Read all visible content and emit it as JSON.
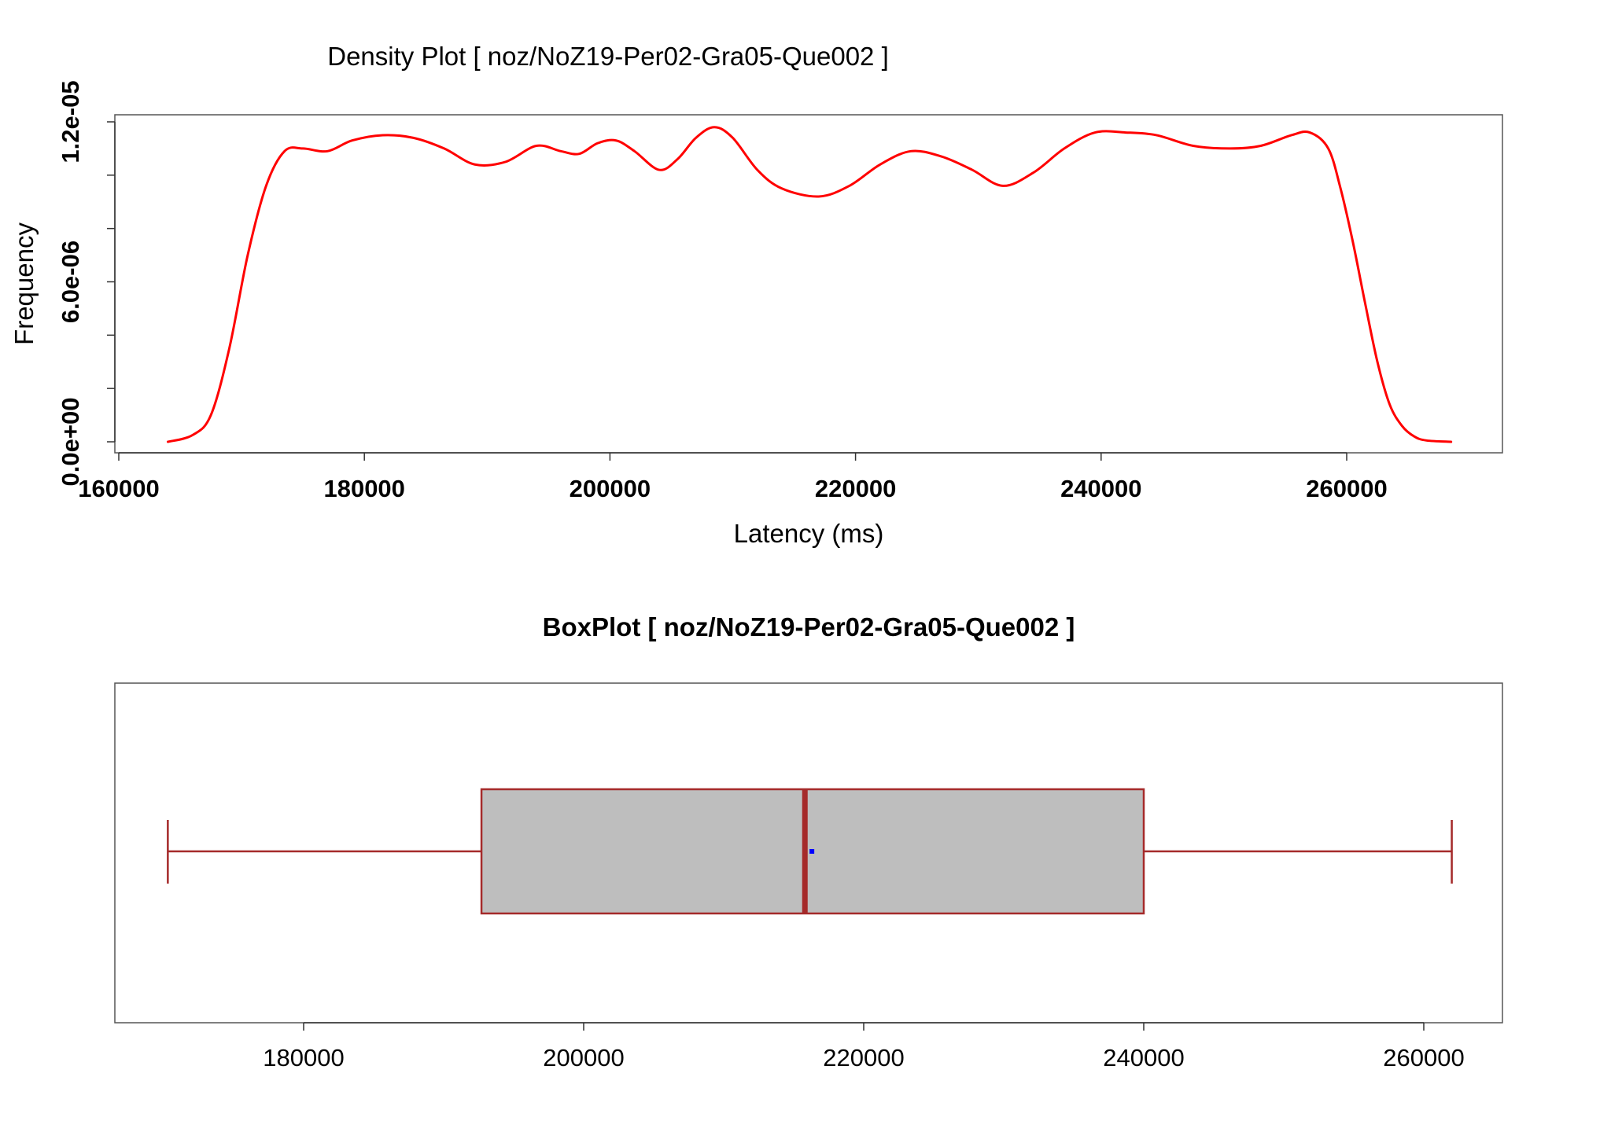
{
  "chart_data": [
    {
      "type": "line",
      "title": "Density Plot [ noz/NoZ19-Per02-Gra05-Que002 ]",
      "xlabel": "Latency (ms)",
      "ylabel": "Frequency",
      "xlim": [
        160000,
        270000
      ],
      "ylim": [
        0,
        1.23e-05
      ],
      "x_ticks": [
        160000,
        180000,
        200000,
        220000,
        240000,
        260000
      ],
      "x_tick_labels": [
        "160000",
        "180000",
        "200000",
        "220000",
        "240000",
        "260000"
      ],
      "y_ticks": [
        0,
        6e-06,
        1.2e-05
      ],
      "y_tick_labels": [
        "0.0e+00",
        "6.0e-06",
        "1.2e-05"
      ],
      "y_minor_ticks": [
        2e-06,
        4e-06,
        8e-06,
        1e-05
      ],
      "grid": false,
      "line_color": "#ff0000",
      "series": [
        {
          "x": [
            164000,
            166000,
            167500,
            169000,
            170500,
            172000,
            173500,
            175000,
            177000,
            179000,
            181500,
            184000,
            186500,
            189000,
            191500,
            194000,
            196000,
            197500,
            199000,
            200500,
            202000,
            204000,
            205500,
            207000,
            208500,
            210000,
            212000,
            214000,
            217000,
            219500,
            222000,
            224500,
            227000,
            229500,
            232000,
            234500,
            237000,
            239500,
            242000,
            244500,
            247500,
            250500,
            253000,
            255500,
            257000,
            258500,
            259500,
            260500,
            261500,
            262500,
            263500,
            264500,
            265500,
            266500,
            268500
          ],
          "y": [
            0,
            2.5e-07,
            1e-06,
            3.5e-06,
            7e-06,
            9.6e-06,
            1.09e-05,
            1.1e-05,
            1.09e-05,
            1.13e-05,
            1.15e-05,
            1.14e-05,
            1.1e-05,
            1.04e-05,
            1.05e-05,
            1.11e-05,
            1.09e-05,
            1.08e-05,
            1.12e-05,
            1.13e-05,
            1.09e-05,
            1.02e-05,
            1.06e-05,
            1.14e-05,
            1.18e-05,
            1.14e-05,
            1.02e-05,
            9.5e-06,
            9.2e-06,
            9.6e-06,
            1.04e-05,
            1.09e-05,
            1.07e-05,
            1.02e-05,
            9.6e-06,
            1.01e-05,
            1.1e-05,
            1.16e-05,
            1.16e-05,
            1.15e-05,
            1.11e-05,
            1.1e-05,
            1.11e-05,
            1.15e-05,
            1.16e-05,
            1.1e-05,
            9.5e-06,
            7.5e-06,
            5.2e-06,
            3e-06,
            1.4e-06,
            6e-07,
            2e-07,
            5e-08,
            0
          ]
        }
      ]
    },
    {
      "type": "box",
      "title": "BoxPlot [ noz/NoZ19-Per02-Gra05-Que002 ]",
      "xlim": [
        166800,
        265800
      ],
      "x_ticks": [
        180000,
        200000,
        220000,
        240000,
        260000
      ],
      "x_tick_labels": [
        "180000",
        "200000",
        "220000",
        "240000",
        "260000"
      ],
      "grid": false,
      "whisker_low": 170300,
      "q1": 192700,
      "median": 215800,
      "mean": 216300,
      "q3": 240000,
      "whisker_high": 262000,
      "box_fill": "#bebebe",
      "box_stroke": "#a52a2a",
      "mean_color": "#0000ff"
    }
  ]
}
